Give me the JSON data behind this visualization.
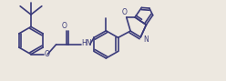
{
  "bg_color": "#ede8e0",
  "bond_color": "#3a3a7a",
  "bond_width": 1.2,
  "figsize": [
    2.48,
    0.89
  ],
  "dpi": 100,
  "xlim": [
    0,
    10
  ],
  "ylim": [
    0,
    3.6
  ]
}
